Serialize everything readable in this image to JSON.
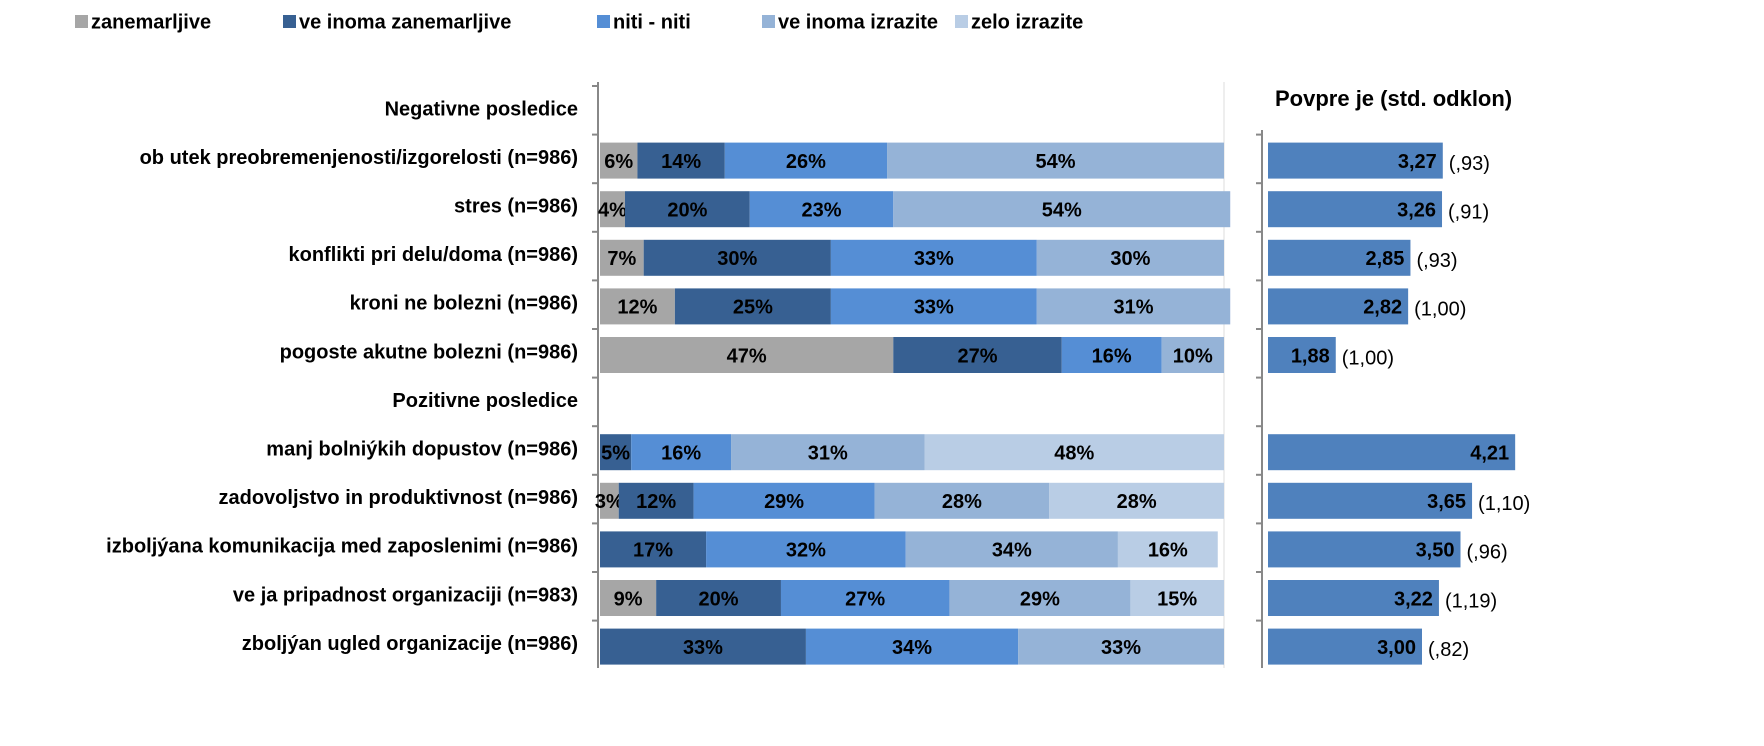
{
  "chart_data": [
    {
      "type": "stacked-barh",
      "categories": [
        "Negativne posledice",
        "ob  utek preobremenjenosti/izgorelosti  (n=986)",
        "stres  (n=986)",
        "konflikti pri delu/doma (n=986)",
        "kroni  ne bolezni (n=986)",
        "pogoste akutne bolezni (n=986)",
        "Pozitivne posledice",
        "manj bolniýkih dopustov  (n=986)",
        "zadovoljstvo  in  produktivnost  (n=986)",
        "izboljýana komunikacija med zaposlenimi  (n=986)",
        "ve  ja pripadnost organizaciji (n=983)",
        "zboljýan ugled organizacije  (n=986)"
      ],
      "xlim": [
        0,
        100
      ],
      "legend": "top",
      "series": [
        {
          "name": "zanemarljive",
          "color": "#a6a6a6",
          "values": [
            null,
            6,
            4,
            7,
            12,
            47,
            null,
            null,
            3,
            null,
            9,
            null
          ],
          "value_labels": [
            null,
            "6%",
            "4%",
            "7%",
            "12%",
            "47%",
            null,
            null,
            "3%",
            null,
            "9%",
            null
          ]
        },
        {
          "name": "ve  inoma zanemarljive",
          "color": "#376092",
          "values": [
            null,
            14,
            20,
            30,
            25,
            27,
            null,
            5,
            12,
            17,
            20,
            33
          ],
          "value_labels": [
            null,
            "14%",
            "20%",
            "30%",
            "25%",
            "27%",
            null,
            "5%",
            "12%",
            "17%",
            "20%",
            "33%"
          ]
        },
        {
          "name": "niti - niti",
          "color": "#558ed5",
          "values": [
            null,
            26,
            23,
            33,
            33,
            16,
            null,
            16,
            29,
            32,
            27,
            34
          ],
          "value_labels": [
            null,
            "26%",
            "23%",
            "33%",
            "33%",
            "16%",
            null,
            "16%",
            "29%",
            "32%",
            "27%",
            "34%"
          ]
        },
        {
          "name": "ve  inoma izrazite",
          "color": "#95b3d7",
          "values": [
            null,
            54,
            54,
            30,
            31,
            10,
            null,
            31,
            28,
            34,
            29,
            33
          ],
          "value_labels": [
            null,
            "54%",
            "54%",
            "30%",
            "31%",
            "10%",
            null,
            "31%",
            "28%",
            "34%",
            "29%",
            "33%"
          ]
        },
        {
          "name": "zelo izrazite",
          "color": "#b9cde5",
          "values": [
            null,
            null,
            null,
            null,
            null,
            null,
            null,
            48,
            28,
            16,
            15,
            null
          ],
          "value_labels": [
            null,
            null,
            null,
            null,
            null,
            null,
            null,
            "48%",
            "28%",
            "16%",
            "15%",
            null
          ]
        }
      ]
    },
    {
      "type": "barh",
      "title": "Povpre  je (std. odklon)",
      "color": "#4f81bd",
      "xlim": [
        1,
        5
      ],
      "values": [
        null,
        3.27,
        3.26,
        2.85,
        2.82,
        1.88,
        null,
        4.21,
        3.65,
        3.5,
        3.22,
        3.0
      ],
      "value_labels": [
        null,
        "3,27",
        "3,26",
        "2,85",
        "2,82",
        "1,88",
        null,
        "4,21",
        "3,65",
        "3,50",
        "3,22",
        "3,00"
      ],
      "sd": [
        null,
        0.93,
        0.91,
        0.93,
        1.0,
        1.0,
        null,
        null,
        1.1,
        0.96,
        1.19,
        0.82
      ],
      "sd_labels": [
        null,
        "(,93)",
        "(,91)",
        "(,93)",
        "(1,00)",
        "(1,00)",
        null,
        null,
        "(1,10)",
        "(,96)",
        "(1,19)",
        "(,82)"
      ]
    }
  ]
}
